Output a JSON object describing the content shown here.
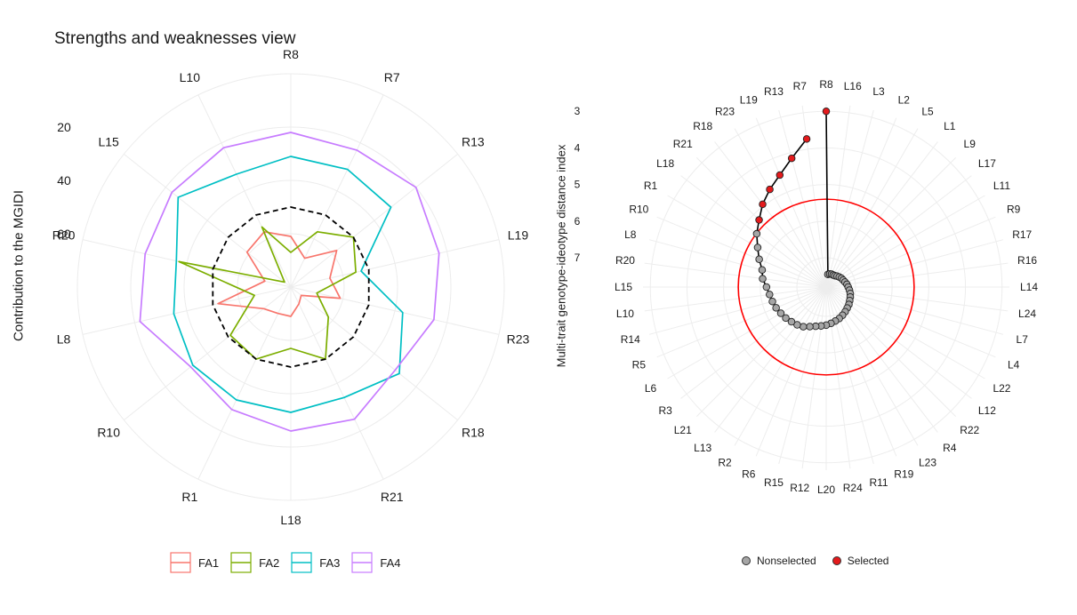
{
  "left": {
    "title": "Strengths and weaknesses view",
    "ylabel": "Contribution to the MGIDI",
    "legend": [
      "FA1",
      "FA2",
      "FA3",
      "FA4"
    ]
  },
  "right": {
    "ylabel": "Multi-trait genotype-ideotype distance index",
    "legend": [
      "Nonselected",
      "Selected"
    ]
  },
  "colors": {
    "FA1": "#F8766D",
    "FA2": "#7CAE00",
    "FA3": "#00BFC4",
    "FA4": "#C77CFF",
    "selected": "#e41a1c",
    "nonselected": "#a6a6a6",
    "cutoff": "#ff0000",
    "mean": "#000000"
  },
  "chart_data": [
    {
      "type": "radar",
      "title": "Strengths and weaknesses view",
      "ylabel": "Contribution to the MGIDI",
      "categories": [
        "R8",
        "R7",
        "R13",
        "L19",
        "R23",
        "R18",
        "R21",
        "L18",
        "R1",
        "R10",
        "L8",
        "R20",
        "L15",
        "L10"
      ],
      "radial_ticks": [
        20,
        40,
        60
      ],
      "radial_reversed": true,
      "radial_range": [
        80,
        0
      ],
      "series": [
        {
          "name": "FA1",
          "values": [
            61,
            68,
            58,
            65,
            61,
            75,
            73,
            69,
            69,
            67,
            52,
            70,
            59,
            57
          ]
        },
        {
          "name": "FA2",
          "values": [
            67,
            57,
            50,
            55,
            70,
            62,
            50,
            57,
            50,
            51,
            66,
            37,
            77,
            55
          ]
        },
        {
          "name": "FA3",
          "values": [
            31,
            31,
            32,
            53,
            37,
            28,
            34,
            33,
            33,
            33,
            35,
            36,
            26,
            33
          ]
        },
        {
          "name": "FA4",
          "values": [
            22,
            23,
            20,
            23,
            25,
            30,
            25,
            26,
            29,
            32,
            22,
            24,
            23,
            22
          ]
        },
        {
          "name": "mean",
          "values": [
            50,
            50,
            50,
            50,
            50,
            50,
            50,
            50,
            50,
            50,
            50,
            50,
            50,
            50
          ]
        }
      ]
    },
    {
      "type": "radial_scatter",
      "ylabel": "Multi-trait genotype-ideotype distance index",
      "radial_ticks": [
        3,
        4,
        5,
        6,
        7
      ],
      "radial_range": [
        7.8,
        2.8
      ],
      "cutoff": 5.4,
      "genotypes": [
        "R8",
        "L16",
        "L3",
        "L2",
        "L5",
        "L1",
        "L9",
        "L17",
        "L11",
        "R9",
        "R17",
        "R16",
        "L14",
        "L24",
        "L7",
        "L4",
        "L22",
        "L12",
        "R22",
        "R4",
        "L23",
        "R19",
        "R11",
        "R24",
        "L20",
        "R12",
        "R15",
        "R6",
        "R2",
        "L13",
        "L21",
        "R3",
        "L6",
        "R5",
        "R14",
        "L10",
        "L15",
        "R20",
        "L8",
        "R10",
        "R1",
        "L18",
        "R21",
        "R18",
        "R23",
        "L19",
        "R13",
        "R7"
      ],
      "values": [
        3.0,
        7.45,
        7.43,
        7.42,
        7.42,
        7.41,
        7.38,
        7.35,
        7.32,
        7.3,
        7.27,
        7.23,
        7.2,
        7.16,
        7.12,
        7.09,
        7.06,
        7.02,
        6.99,
        6.95,
        6.91,
        6.87,
        6.84,
        6.8,
        6.76,
        6.73,
        6.69,
        6.63,
        6.55,
        6.5,
        6.46,
        6.41,
        6.37,
        6.32,
        6.28,
        6.24,
        6.17,
        6.05,
        5.99,
        5.82,
        5.64,
        5.41,
        5.21,
        4.95,
        4.72,
        4.49,
        4.16,
        3.72
      ],
      "selected": [
        "R8",
        "R7",
        "R13",
        "L19",
        "R23",
        "R18",
        "R21"
      ],
      "legend": [
        "Nonselected",
        "Selected"
      ]
    }
  ]
}
